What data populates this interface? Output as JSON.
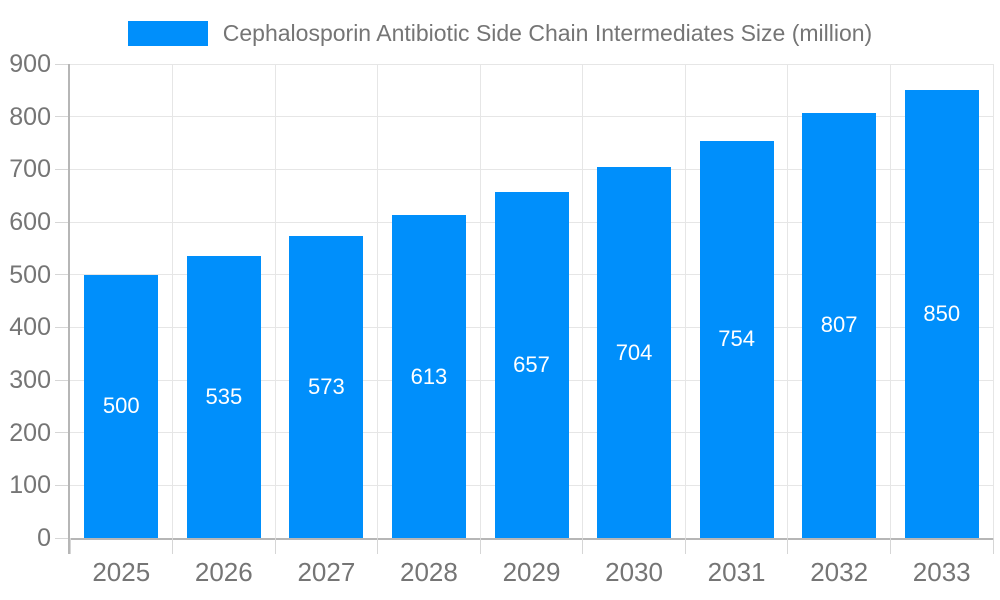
{
  "legend": {
    "label": "Cephalosporin Antibiotic Side Chain Intermediates Size (million)"
  },
  "chart_data": {
    "type": "bar",
    "title": "Cephalosporin Antibiotic Side Chain Intermediates Size (million)",
    "categories": [
      "2025",
      "2026",
      "2027",
      "2028",
      "2029",
      "2030",
      "2031",
      "2032",
      "2033"
    ],
    "values": [
      500,
      535,
      573,
      613,
      657,
      704,
      754,
      807,
      850
    ],
    "xlabel": "",
    "ylabel": "",
    "ylim": [
      0,
      900
    ],
    "yticks": [
      0,
      100,
      200,
      300,
      400,
      500,
      600,
      700,
      800,
      900
    ],
    "grid": true,
    "legend_position": "top-center",
    "value_labels": "inside-middle-white"
  },
  "colors": {
    "bar": "#008FFB",
    "grid": "#e6e6e6",
    "axis": "#b6b6b6",
    "tick": "#d6d6d6",
    "label": "#757575",
    "legend": "#757575",
    "value": "#ffffff",
    "bg": "#ffffff"
  }
}
